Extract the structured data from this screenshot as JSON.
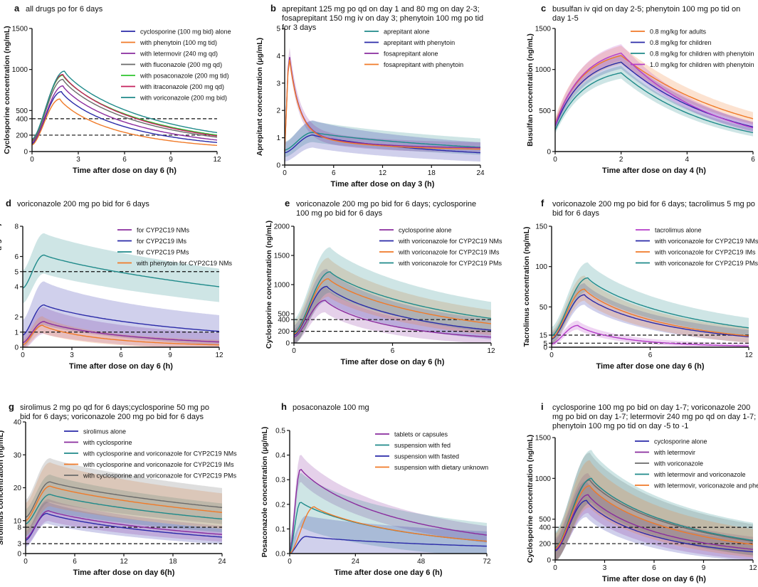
{
  "chart_data": [
    {
      "letter": "a",
      "type": "line",
      "title": [
        "all drugs po for 6 days"
      ],
      "xlabel": "Time after dose on day 6 (h)",
      "ylabel": "Cyclosporine concentration (ng/mL)",
      "xlim": [
        0,
        12
      ],
      "ylim": [
        0,
        1500
      ],
      "xticks": [
        0,
        3,
        6,
        9,
        12
      ],
      "yticks": [
        0,
        200,
        400,
        500,
        1000,
        1500
      ],
      "hlines": [
        200,
        400
      ],
      "shaded": false,
      "series": [
        {
          "name": "cyclosporine (100 mg bid) alone",
          "color": "#2a2aa8",
          "peak": 730,
          "tmax": 1.9,
          "end": 110,
          "start": 95,
          "band": 0
        },
        {
          "name": "with phenytoin (100 mg tid)",
          "color": "#f07a28",
          "peak": 640,
          "tmax": 1.8,
          "end": 75,
          "start": 80,
          "band": 0
        },
        {
          "name": "with letermovir (240 mg qd)",
          "color": "#8a2c9e",
          "peak": 800,
          "tmax": 2.0,
          "end": 140,
          "start": 110,
          "band": 0
        },
        {
          "name": "with fluconazole (200 mg qd)",
          "color": "#6a6a6a",
          "peak": 880,
          "tmax": 2.0,
          "end": 175,
          "start": 125,
          "band": 0
        },
        {
          "name": "with posaconazole (200 mg tid)",
          "color": "#2ec42e",
          "peak": 930,
          "tmax": 2.0,
          "end": 200,
          "start": 135,
          "band": 0
        },
        {
          "name": "with itraconazole (200 mg qd)",
          "color": "#c4225c",
          "peak": 940,
          "tmax": 2.0,
          "end": 190,
          "start": 140,
          "band": 0
        },
        {
          "name": "with voriconazole (200 mg bid)",
          "color": "#1f8a8a",
          "peak": 980,
          "tmax": 2.1,
          "end": 230,
          "start": 150,
          "band": 0
        }
      ]
    },
    {
      "letter": "b",
      "type": "line",
      "title": [
        "aprepitant 125 mg po qd on day 1 and 80 mg on day 2-3;",
        "fosaprepitant 150 mg iv on day 3; phenytoin 100 mg po tid",
        "for 3 days"
      ],
      "xlabel": "Time after dose on day 3 (h)",
      "ylabel": "Aprepitant concentration (μg/mL)",
      "xlim": [
        0,
        24
      ],
      "ylim": [
        0,
        5
      ],
      "xticks": [
        0,
        6,
        12,
        18,
        24
      ],
      "yticks": [
        0,
        1,
        2,
        3,
        4,
        5
      ],
      "hlines": [],
      "shaded": true,
      "series": [
        {
          "name": "aprepitant alone",
          "color": "#1f8a8a",
          "peak": 1.2,
          "tmax": 3.5,
          "end": 0.65,
          "start": 0.55,
          "band": 0.35
        },
        {
          "name": "aprepitant with phenytoin",
          "color": "#2a2aa8",
          "peak": 1.1,
          "tmax": 3.5,
          "end": 0.45,
          "start": 0.45,
          "band": 0.45
        },
        {
          "name": "fosaprepitant alone",
          "color": "#8a2c9e",
          "peak": 4.2,
          "tmax": 0.5,
          "end": 0.6,
          "start": 0.5,
          "band": 0.3,
          "iv": true
        },
        {
          "name": "fosaprepitant  with phenytoin",
          "color": "#f07a28",
          "peak": 4.1,
          "tmax": 0.5,
          "end": 0.55,
          "start": 0.5,
          "band": 0.0,
          "iv": true
        }
      ]
    },
    {
      "letter": "c",
      "type": "line",
      "title": [
        "busulfan iv qid on day 2-5; phenytoin 100 mg po tid on",
        "day 1-5"
      ],
      "xlabel": "Time after dose on day 4 (h)",
      "ylabel": "Busulfan concentration (ng/mL)",
      "xlim": [
        0,
        6
      ],
      "ylim": [
        0,
        1500
      ],
      "xticks": [
        0,
        2,
        4,
        6
      ],
      "yticks": [
        0,
        500,
        1000,
        1500
      ],
      "hlines": [],
      "shaded": true,
      "series": [
        {
          "name": "0.8 mg/kg for adults",
          "color": "#f07a28",
          "peak": 1170,
          "tmax": 2,
          "end": 400,
          "start": 340,
          "band": 100,
          "infusion": true
        },
        {
          "name": "0.8 mg/kg for children",
          "color": "#2a2aa8",
          "peak": 1090,
          "tmax": 2,
          "end": 300,
          "start": 310,
          "band": 80,
          "infusion": true
        },
        {
          "name": "0.8 mg/kg for children with phenytoin",
          "color": "#1f8a8a",
          "peak": 960,
          "tmax": 2,
          "end": 230,
          "start": 260,
          "band": 70,
          "infusion": true
        },
        {
          "name": "1.0 mg/kg for children with phenytoin",
          "color": "#b43cc8",
          "peak": 1200,
          "tmax": 2,
          "end": 290,
          "start": 320,
          "band": 90,
          "infusion": true
        }
      ]
    },
    {
      "letter": "d",
      "type": "line",
      "title": [
        "voriconazole 200 mg po bid for 6 days"
      ],
      "xlabel": "Time after dose on day 6 (h)",
      "ylabel": "Voriconazole concentration (μg/mL)",
      "xlim": [
        0,
        12
      ],
      "ylim": [
        0,
        8
      ],
      "xticks": [
        0,
        3,
        6,
        9,
        12
      ],
      "yticks": [
        0,
        1,
        2,
        4,
        5,
        6,
        8
      ],
      "hlines": [
        1,
        5
      ],
      "shaded": true,
      "series": [
        {
          "name": "for CYP2C19 NMs",
          "color": "#8a2c9e",
          "peak": 1.7,
          "tmax": 1.3,
          "end": 0.35,
          "start": 0.3,
          "band": 0.8
        },
        {
          "name": "for CYP2C19 IMs",
          "color": "#2a2aa8",
          "peak": 2.8,
          "tmax": 1.3,
          "end": 1.05,
          "start": 0.8,
          "band": 1.3
        },
        {
          "name": "for CYP2C19 PMs",
          "color": "#1f8a8a",
          "peak": 6.1,
          "tmax": 1.3,
          "end": 4.0,
          "start": 3.9,
          "band": 1.2
        },
        {
          "name": "with phenytoin for CYP2C19 NMs",
          "color": "#f07a28",
          "peak": 1.45,
          "tmax": 1.2,
          "end": 0.15,
          "start": 0.15,
          "band": 0.5
        }
      ]
    },
    {
      "letter": "e",
      "type": "line",
      "title": [
        "voriconazole 200 mg po bid for 6 days; cyclosporine",
        "100 mg po bid for 6 days"
      ],
      "xlabel": "Time after dose on day 6 (h)",
      "ylabel": "Cyclosporine concentration (ng/mL)",
      "xlim": [
        0,
        12
      ],
      "ylim": [
        0,
        2000
      ],
      "xticks": [
        0,
        6,
        12
      ],
      "yticks": [
        0,
        200,
        400,
        500,
        1000,
        1500,
        2000
      ],
      "hlines": [
        200,
        400
      ],
      "shaded": true,
      "series": [
        {
          "name": "cyclosporine alone",
          "color": "#8a2c9e",
          "peak": 730,
          "tmax": 1.9,
          "end": 100,
          "start": 100,
          "band": 200
        },
        {
          "name": "with voriconazole for CYP2C19 NMs",
          "color": "#2a2aa8",
          "peak": 970,
          "tmax": 2.0,
          "end": 220,
          "start": 130,
          "band": 250
        },
        {
          "name": "with voriconazole for CYP2C19 IMs",
          "color": "#f07a28",
          "peak": 1100,
          "tmax": 2.1,
          "end": 330,
          "start": 150,
          "band": 300
        },
        {
          "name": "with voriconazole for CYP2C19 PMs",
          "color": "#1f8a8a",
          "peak": 1220,
          "tmax": 2.2,
          "end": 420,
          "start": 170,
          "band": 350
        }
      ]
    },
    {
      "letter": "f",
      "type": "line",
      "title": [
        "voriconazole 200 mg po bid for 6 days; tacrolimus 5 mg po",
        "bid for 6 days"
      ],
      "xlabel": "Time after dose one day 6 (h)",
      "ylabel": "Tacrolimus concentration (ng/mL)",
      "xlim": [
        0,
        12
      ],
      "ylim": [
        0,
        150
      ],
      "xticks": [
        0,
        6,
        12
      ],
      "yticks": [
        0,
        5,
        15,
        50,
        100,
        150
      ],
      "hlines": [
        5,
        15
      ],
      "shaded": true,
      "series": [
        {
          "name": "tacrolimus alone",
          "color": "#b43cc8",
          "peak": 27,
          "tmax": 1.6,
          "end": 1.5,
          "start": 4,
          "band": 5
        },
        {
          "name": "with voriconazole for CYP2C19 NMs",
          "color": "#2a2aa8",
          "peak": 65,
          "tmax": 2.0,
          "end": 13,
          "start": 10,
          "band": 12
        },
        {
          "name": "with voriconazole for CYP2C19 IMs",
          "color": "#f07a28",
          "peak": 72,
          "tmax": 2.0,
          "end": 14,
          "start": 11,
          "band": 14
        },
        {
          "name": "with voriconazole for CYP2C19 PMs",
          "color": "#1f8a8a",
          "peak": 86,
          "tmax": 2.2,
          "end": 24,
          "start": 14,
          "band": 16
        }
      ]
    },
    {
      "letter": "g",
      "type": "line",
      "title": [
        "sirolimus 2 mg po qd for 6 days;cyclosporine 50 mg po",
        "bid for 6 days; voriconazole 200 mg po bid  for 6 days"
      ],
      "xlabel": "Time after dose on day 6(h)",
      "ylabel": "Sirolimus concentration (ng/mL)",
      "xlim": [
        0,
        24
      ],
      "ylim": [
        0,
        40
      ],
      "xticks": [
        0,
        6,
        12,
        18,
        24
      ],
      "yticks": [
        0,
        3,
        8,
        10,
        20,
        30,
        40
      ],
      "hlines": [
        3,
        8
      ],
      "shaded": true,
      "series": [
        {
          "name": "sirolimus alone",
          "color": "#2a2aa8",
          "peak": 12.2,
          "tmax": 2.6,
          "end": 5.0,
          "start": 4.0,
          "band": 3.0
        },
        {
          "name": "with cyclosporine",
          "color": "#8a2c9e",
          "peak": 13.0,
          "tmax": 2.8,
          "end": 5.8,
          "start": 4.5,
          "band": 3.0
        },
        {
          "name": "with cyclosporine and voriconazole for CYP2C19 NMs",
          "color": "#1f8a8a",
          "peak": 18.0,
          "tmax": 3.0,
          "end": 10.5,
          "start": 9.0,
          "band": 5.0
        },
        {
          "name": "with cyclosporine and voriconazole for CYP2C19 IMs",
          "color": "#f07a28",
          "peak": 20.5,
          "tmax": 3.0,
          "end": 12.5,
          "start": 10.0,
          "band": 6.0
        },
        {
          "name": "with cyclosporine and voriconazole for CYP2C19 PMs",
          "color": "#6a6a6a",
          "peak": 21.8,
          "tmax": 3.0,
          "end": 14.0,
          "start": 11.0,
          "band": 6.0
        }
      ]
    },
    {
      "letter": "h",
      "type": "line",
      "title": [
        "posaconazole 100 mg"
      ],
      "xlabel": "Time after dose one day 6 (h)",
      "ylabel": "Posaconazole concentration (μg/mL)",
      "xlim": [
        0,
        72
      ],
      "ylim": [
        0,
        0.5
      ],
      "xticks": [
        0,
        24,
        48,
        72
      ],
      "yticks": [
        0.0,
        0.1,
        0.2,
        0.3,
        0.4,
        0.5
      ],
      "hlines": [],
      "shaded": true,
      "series": [
        {
          "name": "tablets or capsules",
          "color": "#8a2c9e",
          "peak": 0.345,
          "tmax": 4,
          "end": 0.075,
          "start": 0.0,
          "band": 0.05
        },
        {
          "name": "suspension with fed",
          "color": "#1f8a8a",
          "peak": 0.21,
          "tmax": 4,
          "end": 0.05,
          "start": 0.0,
          "band": 0.1
        },
        {
          "name": "suspension with fasted",
          "color": "#2a2aa8",
          "peak": 0.07,
          "tmax": 6,
          "end": 0.03,
          "start": 0.0,
          "band": 0.07
        },
        {
          "name": "suspension with dietary unknown",
          "color": "#f07a28",
          "peak": 0.19,
          "tmax": 9,
          "end": 0.05,
          "start": 0.0,
          "band": 0.0
        }
      ]
    },
    {
      "letter": "i",
      "type": "line",
      "title": [
        "cyclosporine 100 mg po bid on day 1-7; voriconazole 200",
        "mg po bid on day 1-7; letermovir 240 mg po qd on day 1-7;",
        "phenytoin 100 mg po tid on day -5 to -1"
      ],
      "xlabel": "Time after dose on day 6 (h)",
      "ylabel": "Cyclosporine concentration (ng/mL)",
      "xlim": [
        0,
        12
      ],
      "ylim": [
        0,
        1500
      ],
      "xticks": [
        0,
        3,
        6,
        9,
        12
      ],
      "yticks": [
        0,
        200,
        400,
        500,
        1000,
        1500
      ],
      "hlines": [
        200,
        400
      ],
      "shaded": true,
      "series": [
        {
          "name": "cyclosporine alone",
          "color": "#2a2aa8",
          "peak": 730,
          "tmax": 1.9,
          "end": 100,
          "start": 110,
          "band": 200
        },
        {
          "name": "with letermovir",
          "color": "#8a2c9e",
          "peak": 800,
          "tmax": 2.0,
          "end": 130,
          "start": 120,
          "band": 220
        },
        {
          "name": "with voriconazole",
          "color": "#6a6a6a",
          "peak": 980,
          "tmax": 2.1,
          "end": 230,
          "start": 140,
          "band": 280
        },
        {
          "name": "with letermovir and voriconazole",
          "color": "#1f8a8a",
          "peak": 1000,
          "tmax": 2.2,
          "end": 240,
          "start": 150,
          "band": 290
        },
        {
          "name": "with letermovir, voriconazole and phenytoin",
          "color": "#f07a28",
          "peak": 910,
          "tmax": 2.1,
          "end": 190,
          "start": 140,
          "band": 260
        }
      ]
    }
  ]
}
